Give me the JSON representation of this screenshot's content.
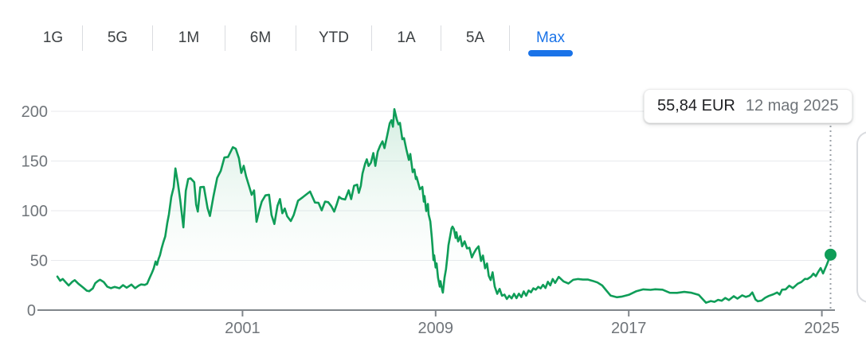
{
  "tabs": {
    "items": [
      {
        "label": "1G",
        "active": false
      },
      {
        "label": "5G",
        "active": false
      },
      {
        "label": "1M",
        "active": false
      },
      {
        "label": "6M",
        "active": false
      },
      {
        "label": "YTD",
        "active": false
      },
      {
        "label": "1A",
        "active": false
      },
      {
        "label": "5A",
        "active": false
      },
      {
        "label": "Max",
        "active": true
      }
    ],
    "active_color": "#1a73e8",
    "inactive_color": "#3c4043"
  },
  "tooltip": {
    "price": "55,84 EUR",
    "date": "12 mag 2025"
  },
  "chart_data": {
    "type": "area",
    "title": "",
    "xlabel": "",
    "ylabel": "",
    "grid": true,
    "legend_position": "none",
    "line_color": "#0f9d58",
    "fill_top_color": "rgba(15,157,88,0.18)",
    "axis_color": "#80868b",
    "gridline_color": "#e8eaed",
    "tick_label_color": "#70757a",
    "crosshair_color": "#9aa0a6",
    "xlim": [
      1993,
      2025.6
    ],
    "ylim": [
      0,
      200
    ],
    "yticks": [
      0,
      50,
      100,
      150,
      200
    ],
    "xticks": [
      2001,
      2009,
      2017,
      2025
    ],
    "last_point": {
      "x": 2025.36,
      "y": 55.84,
      "price_label": "55,84 EUR",
      "date_label": "12 mag 2025"
    },
    "series": [
      {
        "name": "price",
        "points": [
          [
            1993.33,
            33.8
          ],
          [
            1993.45,
            29.5
          ],
          [
            1993.55,
            32
          ],
          [
            1993.65,
            28
          ],
          [
            1993.8,
            25.5
          ],
          [
            1993.95,
            28
          ],
          [
            1994.05,
            30.5
          ],
          [
            1994.2,
            26.5
          ],
          [
            1994.4,
            22.5
          ],
          [
            1994.55,
            20
          ],
          [
            1994.65,
            18.5
          ],
          [
            1994.8,
            22.5
          ],
          [
            1994.9,
            26.5
          ],
          [
            1995.0,
            29.5
          ],
          [
            1995.1,
            30.5
          ],
          [
            1995.25,
            28
          ],
          [
            1995.4,
            24
          ],
          [
            1995.55,
            21.5
          ],
          [
            1995.7,
            24
          ],
          [
            1995.9,
            21.5
          ],
          [
            1996.05,
            25.5
          ],
          [
            1996.2,
            22.5
          ],
          [
            1996.4,
            25.5
          ],
          [
            1996.55,
            22.5
          ],
          [
            1996.7,
            24
          ],
          [
            1996.8,
            26.5
          ],
          [
            1996.95,
            24.8
          ],
          [
            1997.05,
            27
          ],
          [
            1997.15,
            32
          ],
          [
            1997.25,
            37.5
          ],
          [
            1997.32,
            42.5
          ],
          [
            1997.4,
            48
          ],
          [
            1997.46,
            46.5
          ],
          [
            1997.52,
            50.5
          ],
          [
            1997.58,
            56
          ],
          [
            1997.65,
            62
          ],
          [
            1997.72,
            68
          ],
          [
            1997.8,
            75
          ],
          [
            1997.88,
            86
          ],
          [
            1997.95,
            98
          ],
          [
            1998.05,
            112
          ],
          [
            1998.15,
            125
          ],
          [
            1998.22,
            142
          ],
          [
            1998.32,
            128
          ],
          [
            1998.42,
            112
          ],
          [
            1998.55,
            82
          ],
          [
            1998.65,
            122
          ],
          [
            1998.75,
            130
          ],
          [
            1998.85,
            134
          ],
          [
            1999.0,
            128
          ],
          [
            1999.08,
            106
          ],
          [
            1999.15,
            100
          ],
          [
            1999.25,
            122
          ],
          [
            1999.4,
            126
          ],
          [
            1999.55,
            101
          ],
          [
            1999.65,
            96
          ],
          [
            1999.8,
            114
          ],
          [
            1999.95,
            133
          ],
          [
            2000.1,
            141
          ],
          [
            2000.25,
            152
          ],
          [
            2000.4,
            156
          ],
          [
            2000.6,
            162
          ],
          [
            2000.72,
            164
          ],
          [
            2000.85,
            152
          ],
          [
            2000.95,
            138
          ],
          [
            2001.05,
            146
          ],
          [
            2001.15,
            133
          ],
          [
            2001.28,
            126
          ],
          [
            2001.38,
            114
          ],
          [
            2001.48,
            122
          ],
          [
            2001.58,
            88
          ],
          [
            2001.7,
            101
          ],
          [
            2001.8,
            110
          ],
          [
            2001.95,
            114
          ],
          [
            2002.1,
            118
          ],
          [
            2002.2,
            94
          ],
          [
            2002.32,
            88
          ],
          [
            2002.45,
            104
          ],
          [
            2002.55,
            112
          ],
          [
            2002.65,
            98
          ],
          [
            2002.75,
            101
          ],
          [
            2002.85,
            96
          ],
          [
            2003.0,
            88
          ],
          [
            2003.12,
            97
          ],
          [
            2003.3,
            109
          ],
          [
            2003.5,
            114
          ],
          [
            2003.65,
            117
          ],
          [
            2003.8,
            118
          ],
          [
            2004.0,
            110
          ],
          [
            2004.15,
            106
          ],
          [
            2004.28,
            102
          ],
          [
            2004.42,
            108
          ],
          [
            2004.55,
            109
          ],
          [
            2004.68,
            105
          ],
          [
            2004.8,
            98
          ],
          [
            2004.9,
            108
          ],
          [
            2005.0,
            112
          ],
          [
            2005.1,
            114
          ],
          [
            2005.25,
            110
          ],
          [
            2005.4,
            121
          ],
          [
            2005.5,
            112
          ],
          [
            2005.62,
            124
          ],
          [
            2005.75,
            128
          ],
          [
            2005.82,
            116
          ],
          [
            2005.9,
            127
          ],
          [
            2005.97,
            136
          ],
          [
            2006.08,
            148
          ],
          [
            2006.15,
            152
          ],
          [
            2006.22,
            144
          ],
          [
            2006.32,
            150
          ],
          [
            2006.42,
            156
          ],
          [
            2006.5,
            147
          ],
          [
            2006.6,
            158
          ],
          [
            2006.7,
            166
          ],
          [
            2006.8,
            170
          ],
          [
            2006.88,
            162
          ],
          [
            2007.0,
            178
          ],
          [
            2007.1,
            186
          ],
          [
            2007.17,
            193
          ],
          [
            2007.23,
            183
          ],
          [
            2007.29,
            203
          ],
          [
            2007.39,
            192
          ],
          [
            2007.46,
            186
          ],
          [
            2007.52,
            190
          ],
          [
            2007.62,
            170
          ],
          [
            2007.69,
            175
          ],
          [
            2007.79,
            160
          ],
          [
            2007.89,
            152
          ],
          [
            2007.95,
            157
          ],
          [
            2008.05,
            138
          ],
          [
            2008.12,
            143
          ],
          [
            2008.18,
            130
          ],
          [
            2008.21,
            136
          ],
          [
            2008.35,
            120
          ],
          [
            2008.45,
            125
          ],
          [
            2008.51,
            109
          ],
          [
            2008.54,
            114
          ],
          [
            2008.61,
            101
          ],
          [
            2008.68,
            105
          ],
          [
            2008.71,
            98
          ],
          [
            2008.78,
            88
          ],
          [
            2008.84,
            74
          ],
          [
            2008.87,
            64
          ],
          [
            2008.91,
            50
          ],
          [
            2008.94,
            56
          ],
          [
            2009.0,
            42
          ],
          [
            2009.04,
            48
          ],
          [
            2009.1,
            32
          ],
          [
            2009.17,
            24
          ],
          [
            2009.2,
            29
          ],
          [
            2009.27,
            20
          ],
          [
            2009.3,
            18
          ],
          [
            2009.37,
            32
          ],
          [
            2009.43,
            42
          ],
          [
            2009.5,
            56
          ],
          [
            2009.53,
            66
          ],
          [
            2009.6,
            74
          ],
          [
            2009.66,
            82
          ],
          [
            2009.7,
            85
          ],
          [
            2009.76,
            80
          ],
          [
            2009.83,
            74
          ],
          [
            2009.86,
            77
          ],
          [
            2009.93,
            70
          ],
          [
            2010.02,
            74
          ],
          [
            2010.1,
            64
          ],
          [
            2010.2,
            70
          ],
          [
            2010.3,
            61
          ],
          [
            2010.4,
            64
          ],
          [
            2010.5,
            52
          ],
          [
            2010.58,
            58
          ],
          [
            2010.68,
            61
          ],
          [
            2010.78,
            64
          ],
          [
            2010.88,
            50
          ],
          [
            2010.96,
            54
          ],
          [
            2011.05,
            43
          ],
          [
            2011.13,
            46
          ],
          [
            2011.2,
            35
          ],
          [
            2011.28,
            30
          ],
          [
            2011.36,
            38
          ],
          [
            2011.45,
            24
          ],
          [
            2011.55,
            16
          ],
          [
            2011.65,
            22
          ],
          [
            2011.75,
            14
          ],
          [
            2011.85,
            16
          ],
          [
            2011.95,
            11
          ],
          [
            2012.05,
            14.5
          ],
          [
            2012.15,
            12
          ],
          [
            2012.25,
            16
          ],
          [
            2012.35,
            12.5
          ],
          [
            2012.45,
            16
          ],
          [
            2012.55,
            13.5
          ],
          [
            2012.65,
            18.5
          ],
          [
            2012.75,
            14.5
          ],
          [
            2012.85,
            20
          ],
          [
            2012.95,
            17.5
          ],
          [
            2013.05,
            22.5
          ],
          [
            2013.15,
            20
          ],
          [
            2013.25,
            24
          ],
          [
            2013.35,
            21.5
          ],
          [
            2013.45,
            25.5
          ],
          [
            2013.55,
            22.5
          ],
          [
            2013.65,
            28
          ],
          [
            2013.75,
            25.5
          ],
          [
            2013.85,
            30.5
          ],
          [
            2013.95,
            28
          ],
          [
            2014.1,
            33
          ],
          [
            2014.3,
            29
          ],
          [
            2014.5,
            27
          ],
          [
            2014.7,
            30
          ],
          [
            2014.9,
            32
          ],
          [
            2015.1,
            30
          ],
          [
            2015.3,
            31.5
          ],
          [
            2015.5,
            29
          ],
          [
            2015.7,
            28
          ],
          [
            2015.9,
            25
          ],
          [
            2016.05,
            20
          ],
          [
            2016.25,
            15
          ],
          [
            2016.5,
            12.5
          ],
          [
            2016.7,
            14
          ],
          [
            2017.0,
            15
          ],
          [
            2017.3,
            19
          ],
          [
            2017.6,
            21
          ],
          [
            2017.9,
            20
          ],
          [
            2018.1,
            21.5
          ],
          [
            2018.4,
            20
          ],
          [
            2018.7,
            18
          ],
          [
            2019.0,
            17
          ],
          [
            2019.3,
            18.5
          ],
          [
            2019.6,
            17.5
          ],
          [
            2019.9,
            15
          ],
          [
            2020.1,
            10.5
          ],
          [
            2020.2,
            7
          ],
          [
            2020.4,
            9.5
          ],
          [
            2020.55,
            8
          ],
          [
            2020.7,
            10.5
          ],
          [
            2020.85,
            9.5
          ],
          [
            2021.0,
            12
          ],
          [
            2021.15,
            10.5
          ],
          [
            2021.35,
            13.5
          ],
          [
            2021.5,
            12
          ],
          [
            2021.7,
            14.5
          ],
          [
            2021.85,
            13.5
          ],
          [
            2022.0,
            14.5
          ],
          [
            2022.12,
            17.5
          ],
          [
            2022.25,
            11
          ],
          [
            2022.35,
            8.5
          ],
          [
            2022.5,
            10
          ],
          [
            2022.65,
            12
          ],
          [
            2022.8,
            14.5
          ],
          [
            2023.0,
            16
          ],
          [
            2023.15,
            17.5
          ],
          [
            2023.25,
            16
          ],
          [
            2023.35,
            20
          ],
          [
            2023.5,
            21.5
          ],
          [
            2023.65,
            24
          ],
          [
            2023.8,
            22.5
          ],
          [
            2024.0,
            26.5
          ],
          [
            2024.15,
            28
          ],
          [
            2024.3,
            32
          ],
          [
            2024.4,
            30.5
          ],
          [
            2024.55,
            34.5
          ],
          [
            2024.65,
            36
          ],
          [
            2024.75,
            34.5
          ],
          [
            2024.85,
            38.5
          ],
          [
            2024.95,
            42
          ],
          [
            2025.05,
            37.5
          ],
          [
            2025.12,
            40
          ],
          [
            2025.2,
            45.5
          ],
          [
            2025.28,
            50.5
          ],
          [
            2025.36,
            55.84
          ]
        ]
      }
    ]
  }
}
